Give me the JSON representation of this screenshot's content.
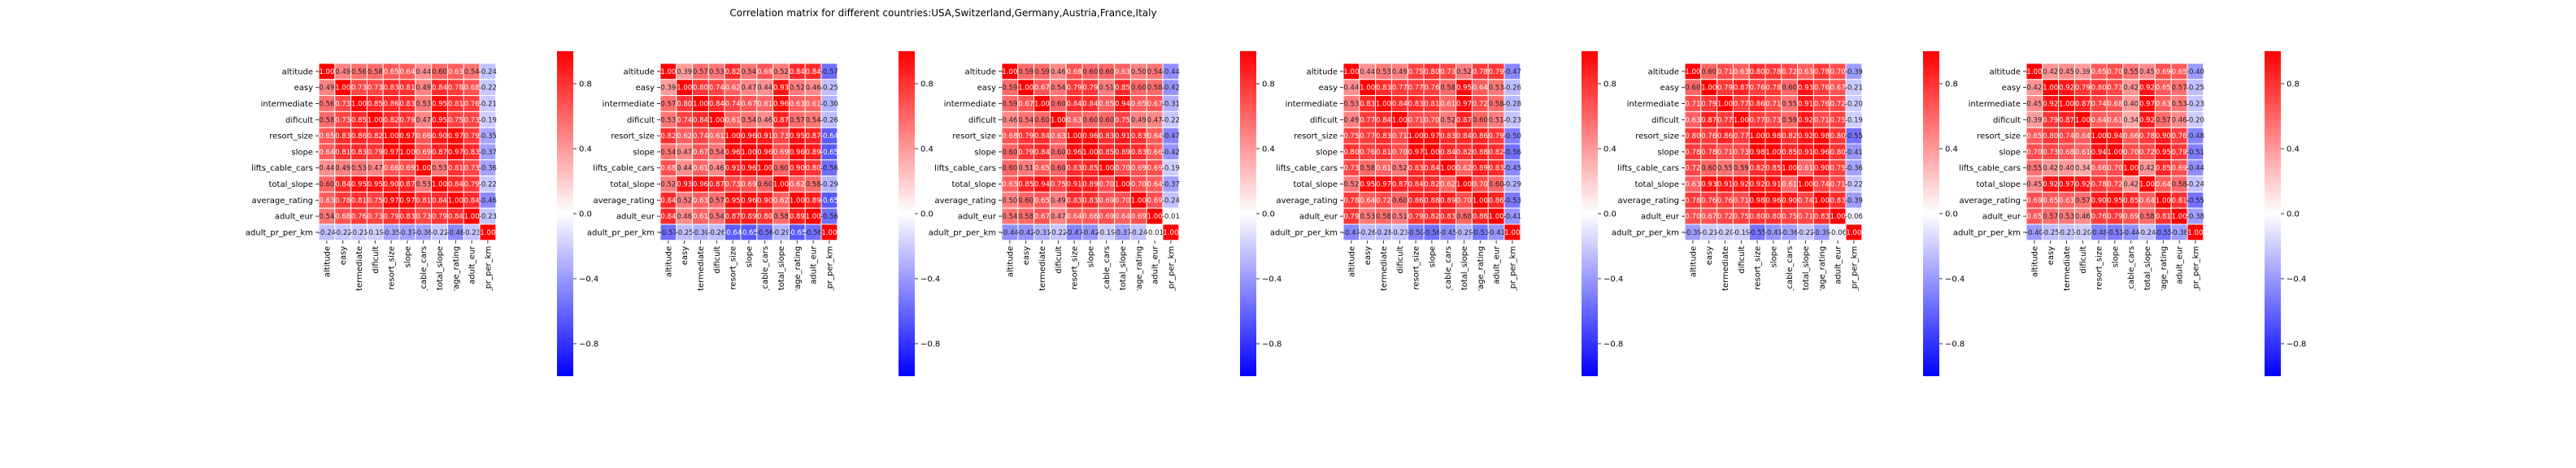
{
  "figure": {
    "title": "Correlation matrix for different countries:USA,Switzerland,Germany,Austria,France,Italy"
  },
  "chart_data": [
    {
      "type": "heatmap",
      "colormap": "bwr",
      "vmin": -1,
      "vmax": 1,
      "labels": [
        "altitude",
        "easy",
        "intermediate",
        "dificult",
        "resort_size",
        "slope",
        "lifts_cable_cars",
        "total_slope",
        "average_rating",
        "adult_eur",
        "adult_pr_per_km"
      ],
      "colorbar_ticks": [
        0.8,
        0.4,
        0.0,
        -0.4,
        -0.8
      ],
      "matrix": [
        [
          1.0,
          0.49,
          0.56,
          0.58,
          0.65,
          0.64,
          0.44,
          0.6,
          0.63,
          0.54,
          -0.24
        ],
        [
          0.49,
          1.0,
          0.73,
          0.73,
          0.83,
          0.81,
          0.49,
          0.84,
          0.78,
          0.68,
          -0.22
        ],
        [
          0.56,
          0.73,
          1.0,
          0.85,
          0.86,
          0.83,
          0.53,
          0.95,
          0.81,
          0.76,
          -0.21
        ],
        [
          0.58,
          0.73,
          0.85,
          1.0,
          0.82,
          0.79,
          0.47,
          0.95,
          0.75,
          0.73,
          -0.19
        ],
        [
          0.65,
          0.83,
          0.86,
          0.82,
          1.0,
          0.97,
          0.66,
          0.9,
          0.97,
          0.79,
          -0.35
        ],
        [
          0.64,
          0.81,
          0.83,
          0.79,
          0.97,
          1.0,
          0.69,
          0.87,
          0.97,
          0.83,
          -0.37
        ],
        [
          0.44,
          0.49,
          0.53,
          0.47,
          0.66,
          0.69,
          1.0,
          0.53,
          0.81,
          0.73,
          -0.36
        ],
        [
          0.6,
          0.84,
          0.95,
          0.95,
          0.9,
          0.87,
          0.53,
          1.0,
          0.84,
          0.79,
          -0.22
        ],
        [
          0.63,
          0.78,
          0.81,
          0.75,
          0.97,
          0.97,
          0.81,
          0.84,
          1.0,
          0.84,
          -0.46
        ],
        [
          0.54,
          0.68,
          0.76,
          0.73,
          0.79,
          0.83,
          0.73,
          0.79,
          0.84,
          1.0,
          -0.23
        ],
        [
          -0.24,
          -0.22,
          -0.21,
          -0.19,
          -0.35,
          -0.37,
          -0.36,
          -0.22,
          -0.46,
          -0.23,
          1.0
        ]
      ]
    },
    {
      "type": "heatmap",
      "colormap": "bwr",
      "vmin": -1,
      "vmax": 1,
      "labels": [
        "altitude",
        "easy",
        "intermediate",
        "dificult",
        "resort_size",
        "slope",
        "lifts_cable_cars",
        "total_slope",
        "average_rating",
        "adult_eur",
        "adult_pr_per_km"
      ],
      "colorbar_ticks": [
        0.8,
        0.4,
        0.0,
        -0.4,
        -0.8
      ],
      "matrix": [
        [
          1.0,
          0.39,
          0.57,
          0.53,
          0.82,
          0.54,
          0.68,
          0.52,
          0.84,
          0.84,
          -0.57
        ],
        [
          0.39,
          1.0,
          0.8,
          0.74,
          0.62,
          0.47,
          0.44,
          0.93,
          0.52,
          0.46,
          -0.25
        ],
        [
          0.57,
          0.8,
          1.0,
          0.84,
          0.74,
          0.67,
          0.61,
          0.96,
          0.63,
          0.61,
          -0.3
        ],
        [
          0.53,
          0.74,
          0.84,
          1.0,
          0.61,
          0.54,
          0.46,
          0.87,
          0.57,
          0.54,
          -0.26
        ],
        [
          0.82,
          0.62,
          0.74,
          0.61,
          1.0,
          0.96,
          0.91,
          0.73,
          0.95,
          0.87,
          -0.64
        ],
        [
          0.54,
          0.47,
          0.67,
          0.54,
          0.96,
          1.0,
          0.96,
          0.69,
          0.96,
          0.89,
          -0.65
        ],
        [
          0.68,
          0.44,
          0.61,
          0.46,
          0.91,
          0.96,
          1.0,
          0.6,
          0.9,
          0.8,
          -0.56
        ],
        [
          0.52,
          0.93,
          0.96,
          0.87,
          0.73,
          0.69,
          0.6,
          1.0,
          0.62,
          0.58,
          -0.29
        ],
        [
          0.84,
          0.52,
          0.63,
          0.57,
          0.95,
          0.96,
          0.9,
          0.62,
          1.0,
          0.89,
          -0.65
        ],
        [
          0.84,
          0.46,
          0.61,
          0.54,
          0.87,
          0.89,
          0.8,
          0.58,
          0.89,
          1.0,
          -0.56
        ],
        [
          -0.57,
          -0.25,
          -0.3,
          -0.26,
          -0.64,
          -0.65,
          -0.56,
          -0.29,
          -0.65,
          -0.56,
          1.0
        ]
      ]
    },
    {
      "type": "heatmap",
      "colormap": "bwr",
      "vmin": -1,
      "vmax": 1,
      "labels": [
        "altitude",
        "easy",
        "intermediate",
        "dificult",
        "resort_size",
        "slope",
        "lifts_cable_cars",
        "total_slope",
        "average_rating",
        "adult_eur",
        "adult_pr_per_km"
      ],
      "colorbar_ticks": [
        0.8,
        0.4,
        0.0,
        -0.4,
        -0.8
      ],
      "matrix": [
        [
          1.0,
          0.59,
          0.59,
          0.46,
          0.68,
          0.6,
          0.6,
          0.63,
          0.5,
          0.54,
          -0.44
        ],
        [
          0.59,
          1.0,
          0.67,
          0.54,
          0.79,
          0.79,
          0.51,
          0.85,
          0.6,
          0.58,
          -0.42
        ],
        [
          0.59,
          0.67,
          1.0,
          0.6,
          0.84,
          0.84,
          0.65,
          0.94,
          0.65,
          0.67,
          -0.31
        ],
        [
          0.46,
          0.54,
          0.6,
          1.0,
          0.63,
          0.6,
          0.6,
          0.75,
          0.49,
          0.47,
          -0.22
        ],
        [
          0.68,
          0.79,
          0.84,
          0.63,
          1.0,
          0.96,
          0.83,
          0.91,
          0.83,
          0.64,
          -0.47
        ],
        [
          0.6,
          0.79,
          0.84,
          0.6,
          0.96,
          1.0,
          0.85,
          0.89,
          0.83,
          0.66,
          -0.42
        ],
        [
          0.6,
          0.51,
          0.65,
          0.6,
          0.83,
          0.85,
          1.0,
          0.7,
          0.69,
          0.69,
          -0.19
        ],
        [
          0.63,
          0.85,
          0.94,
          0.75,
          0.91,
          0.89,
          0.7,
          1.0,
          0.7,
          0.64,
          -0.37
        ],
        [
          0.5,
          0.6,
          0.65,
          0.49,
          0.83,
          0.83,
          0.69,
          0.7,
          1.0,
          0.69,
          -0.24
        ],
        [
          0.54,
          0.58,
          0.67,
          0.47,
          0.64,
          0.66,
          0.69,
          0.64,
          0.69,
          1.0,
          -0.01
        ],
        [
          -0.44,
          -0.42,
          -0.31,
          -0.22,
          -0.47,
          -0.42,
          -0.19,
          -0.37,
          -0.24,
          -0.01,
          1.0
        ]
      ]
    },
    {
      "type": "heatmap",
      "colormap": "bwr",
      "vmin": -1,
      "vmax": 1,
      "labels": [
        "altitude",
        "easy",
        "intermediate",
        "dificult",
        "resort_size",
        "slope",
        "lifts_cable_cars",
        "total_slope",
        "average_rating",
        "adult_eur",
        "adult_pr_per_km"
      ],
      "colorbar_ticks": [
        0.8,
        0.4,
        0.0,
        -0.4,
        -0.8
      ],
      "matrix": [
        [
          1.0,
          0.44,
          0.53,
          0.49,
          0.75,
          0.8,
          0.73,
          0.52,
          0.78,
          0.79,
          -0.47
        ],
        [
          0.44,
          1.0,
          0.83,
          0.77,
          0.77,
          0.76,
          0.58,
          0.95,
          0.64,
          0.53,
          -0.26
        ],
        [
          0.53,
          0.83,
          1.0,
          0.84,
          0.83,
          0.81,
          0.61,
          0.97,
          0.72,
          0.58,
          -0.28
        ],
        [
          0.49,
          0.77,
          0.84,
          1.0,
          0.71,
          0.7,
          0.52,
          0.87,
          0.6,
          0.51,
          -0.23
        ],
        [
          0.75,
          0.77,
          0.83,
          0.71,
          1.0,
          0.97,
          0.83,
          0.84,
          0.86,
          0.79,
          -0.5
        ],
        [
          0.8,
          0.76,
          0.81,
          0.7,
          0.97,
          1.0,
          0.84,
          0.82,
          0.88,
          0.82,
          -0.56
        ],
        [
          0.73,
          0.58,
          0.61,
          0.52,
          0.83,
          0.84,
          1.0,
          0.62,
          0.89,
          0.83,
          -0.45
        ],
        [
          0.52,
          0.95,
          0.97,
          0.87,
          0.84,
          0.82,
          0.62,
          1.0,
          0.7,
          0.6,
          -0.29
        ],
        [
          0.78,
          0.64,
          0.72,
          0.6,
          0.86,
          0.88,
          0.89,
          0.7,
          1.0,
          0.86,
          -0.53
        ],
        [
          0.79,
          0.53,
          0.58,
          0.51,
          0.79,
          0.82,
          0.83,
          0.6,
          0.86,
          1.0,
          -0.41
        ],
        [
          -0.47,
          -0.26,
          -0.28,
          -0.23,
          -0.5,
          -0.56,
          -0.45,
          -0.29,
          -0.53,
          -0.41,
          1.0
        ]
      ]
    },
    {
      "type": "heatmap",
      "colormap": "bwr",
      "vmin": -1,
      "vmax": 1,
      "labels": [
        "altitude",
        "easy",
        "intermediate",
        "dificult",
        "resort_size",
        "slope",
        "lifts_cable_cars",
        "total_slope",
        "average_rating",
        "adult_eur",
        "adult_pr_per_km"
      ],
      "colorbar_ticks": [
        0.8,
        0.4,
        0.0,
        -0.4,
        -0.8
      ],
      "matrix": [
        [
          1.0,
          0.6,
          0.71,
          0.63,
          0.8,
          0.78,
          0.72,
          0.63,
          0.78,
          0.7,
          -0.39
        ],
        [
          0.6,
          1.0,
          0.79,
          0.87,
          0.76,
          0.78,
          0.6,
          0.93,
          0.76,
          0.67,
          -0.21
        ],
        [
          0.71,
          0.79,
          1.0,
          0.77,
          0.86,
          0.71,
          0.55,
          0.91,
          0.76,
          0.72,
          -0.2
        ],
        [
          0.63,
          0.87,
          0.77,
          1.0,
          0.77,
          0.73,
          0.59,
          0.92,
          0.71,
          0.75,
          -0.19
        ],
        [
          0.8,
          0.76,
          0.86,
          0.77,
          1.0,
          0.98,
          0.82,
          0.92,
          0.98,
          0.8,
          -0.55
        ],
        [
          0.78,
          0.78,
          0.71,
          0.73,
          0.98,
          1.0,
          0.85,
          0.91,
          0.96,
          0.8,
          -0.41
        ],
        [
          0.72,
          0.6,
          0.55,
          0.59,
          0.82,
          0.85,
          1.0,
          0.61,
          0.9,
          0.75,
          -0.36
        ],
        [
          0.63,
          0.93,
          0.91,
          0.92,
          0.92,
          0.91,
          0.61,
          1.0,
          0.74,
          0.71,
          -0.22
        ],
        [
          0.78,
          0.76,
          0.76,
          0.71,
          0.98,
          0.96,
          0.9,
          0.74,
          1.0,
          0.83,
          -0.39
        ],
        [
          0.7,
          0.67,
          0.72,
          0.75,
          0.8,
          0.8,
          0.75,
          0.71,
          0.83,
          1.0,
          -0.06
        ],
        [
          -0.39,
          -0.21,
          -0.2,
          -0.19,
          -0.55,
          -0.41,
          -0.36,
          -0.22,
          -0.39,
          -0.06,
          1.0
        ]
      ]
    },
    {
      "type": "heatmap",
      "colormap": "bwr",
      "vmin": -1,
      "vmax": 1,
      "labels": [
        "altitude",
        "easy",
        "intermediate",
        "dificult",
        "resort_size",
        "slope",
        "lifts_cable_cars",
        "total_slope",
        "average_rating",
        "adult_eur",
        "adult_pr_per_km"
      ],
      "colorbar_ticks": [
        0.8,
        0.4,
        0.0,
        -0.4,
        -0.8
      ],
      "matrix": [
        [
          1.0,
          0.42,
          0.45,
          0.39,
          0.65,
          0.7,
          0.55,
          0.45,
          0.69,
          0.65,
          -0.4
        ],
        [
          0.42,
          1.0,
          0.92,
          0.79,
          0.8,
          0.73,
          0.42,
          0.92,
          0.65,
          0.57,
          -0.25
        ],
        [
          0.45,
          0.92,
          1.0,
          0.87,
          0.74,
          0.68,
          0.4,
          0.97,
          0.63,
          0.53,
          -0.23
        ],
        [
          0.39,
          0.79,
          0.87,
          1.0,
          0.64,
          0.61,
          0.34,
          0.92,
          0.57,
          0.46,
          -0.2
        ],
        [
          0.65,
          0.8,
          0.74,
          0.64,
          1.0,
          0.94,
          0.66,
          0.78,
          0.9,
          0.76,
          -0.48
        ],
        [
          0.7,
          0.73,
          0.68,
          0.61,
          0.94,
          1.0,
          0.7,
          0.72,
          0.95,
          0.79,
          -0.51
        ],
        [
          0.55,
          0.42,
          0.4,
          0.34,
          0.66,
          0.7,
          1.0,
          0.42,
          0.85,
          0.69,
          -0.44
        ],
        [
          0.45,
          0.92,
          0.97,
          0.92,
          0.78,
          0.72,
          0.42,
          1.0,
          0.64,
          0.58,
          -0.24
        ],
        [
          0.69,
          0.65,
          0.63,
          0.57,
          0.9,
          0.95,
          0.85,
          0.64,
          1.0,
          0.81,
          -0.55
        ],
        [
          0.65,
          0.57,
          0.53,
          0.46,
          0.76,
          0.79,
          0.69,
          0.58,
          0.81,
          1.0,
          -0.38
        ],
        [
          -0.4,
          -0.25,
          -0.23,
          -0.2,
          -0.48,
          -0.51,
          -0.44,
          -0.24,
          -0.55,
          -0.38,
          1.0
        ]
      ]
    }
  ]
}
